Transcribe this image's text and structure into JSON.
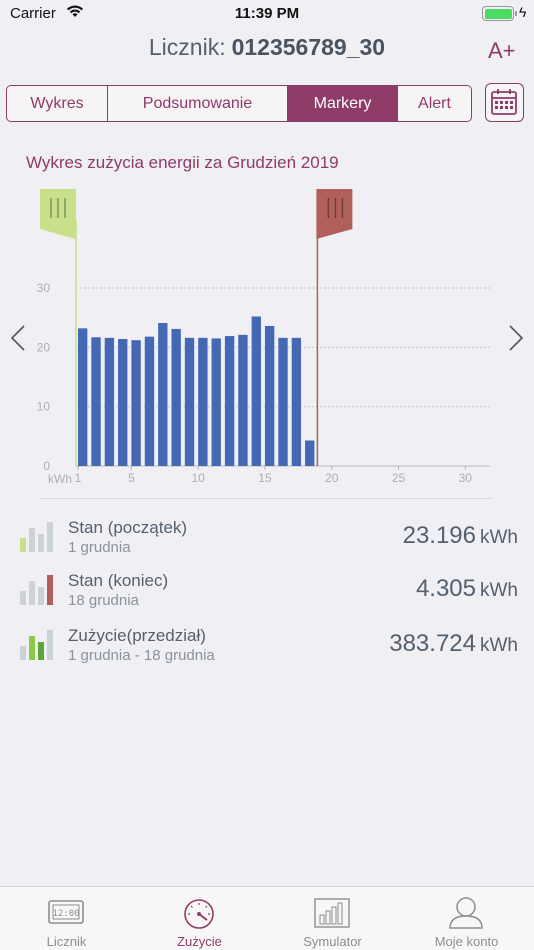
{
  "status_bar": {
    "carrier": "Carrier",
    "time": "11:39 PM",
    "wifi_icon": "wifi-icon",
    "battery_level": 1.0
  },
  "header": {
    "label": "Licznik:",
    "meter_id": "012356789_30",
    "font_button": "A+"
  },
  "segmented": {
    "tabs": [
      "Wykres",
      "Podsumowanie",
      "Markery",
      "Alert"
    ],
    "active": "Markery",
    "calendar_icon": "calendar-icon"
  },
  "chart_data": {
    "type": "bar",
    "title": "Wykres zużycia energii za Grudzień 2019",
    "ylabel": "kWh",
    "ylim": [
      0,
      30
    ],
    "xlim": [
      1,
      31
    ],
    "yticks": [
      "0",
      "10",
      "20",
      "30"
    ],
    "xticks": [
      "1",
      "5",
      "10",
      "15",
      "20",
      "25",
      "30"
    ],
    "x": [
      1,
      2,
      3,
      4,
      5,
      6,
      7,
      8,
      9,
      10,
      11,
      12,
      13,
      14,
      15,
      16,
      17,
      18
    ],
    "values": [
      23.2,
      21.7,
      21.6,
      21.4,
      21.2,
      21.8,
      24.1,
      23.1,
      21.6,
      21.6,
      21.5,
      21.9,
      22.1,
      25.2,
      23.6,
      21.6,
      21.6,
      4.3
    ],
    "bar_color": "#4468b4",
    "grid": true,
    "markers": [
      {
        "name": "start",
        "day": 1,
        "color": "#c8e08a"
      },
      {
        "name": "end",
        "day": 18,
        "color": "#b0605a"
      }
    ],
    "nav": {
      "prev_icon": "chevron-left-icon",
      "next_icon": "chevron-right-icon"
    }
  },
  "stats": [
    {
      "title": "Stan (początek)",
      "subtitle": "1 grudnia",
      "value": "23.196",
      "unit": "kWh",
      "icon": "bars-start-icon"
    },
    {
      "title": "Stan (koniec)",
      "subtitle": "18 grudnia",
      "value": "4.305",
      "unit": "kWh",
      "icon": "bars-end-icon"
    },
    {
      "title": "Zużycie(przedział)",
      "subtitle": "1 grudnia - 18 grudnia",
      "value": "383.724",
      "unit": "kWh",
      "icon": "bars-range-icon"
    }
  ],
  "tabbar": {
    "items": [
      {
        "label": "Licznik",
        "icon": "clock-display-icon"
      },
      {
        "label": "Zużycie",
        "icon": "speedometer-icon"
      },
      {
        "label": "Symulator",
        "icon": "bar-chart-icon"
      },
      {
        "label": "Moje konto",
        "icon": "user-icon"
      }
    ],
    "active": "Zużycie",
    "colors": {
      "accent": "#8e3b68",
      "inactive": "#8e8e93"
    }
  }
}
